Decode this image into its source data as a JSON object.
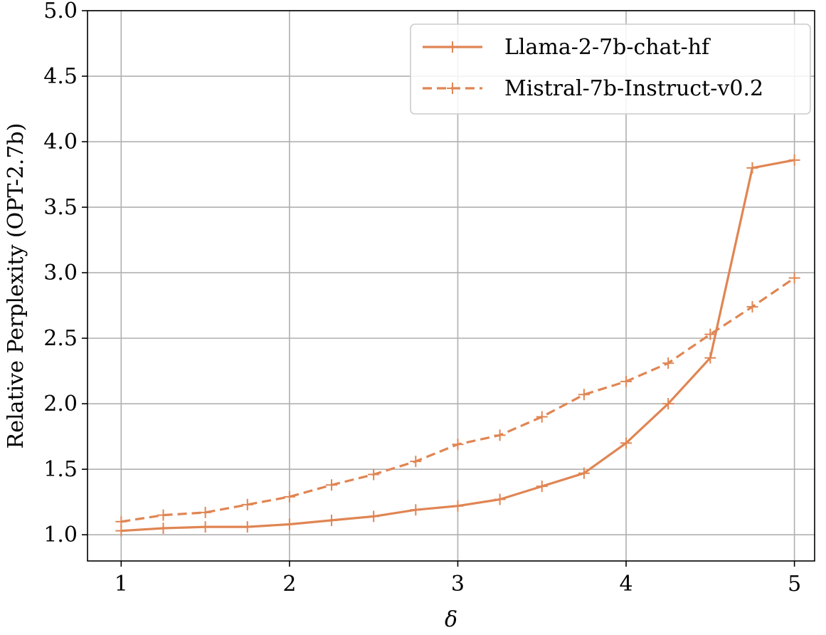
{
  "chart_data": {
    "type": "line",
    "xlabel": "δ",
    "ylabel": "Relative Perplexity (OPT-2.7b)",
    "xlim": [
      0.8,
      5.12
    ],
    "ylim": [
      0.8,
      5.0
    ],
    "xticks": [
      1,
      2,
      3,
      4,
      5
    ],
    "yticks": [
      1.0,
      1.5,
      2.0,
      2.5,
      3.0,
      3.5,
      4.0,
      4.5,
      5.0
    ],
    "xtick_labels": [
      "1",
      "2",
      "3",
      "4",
      "5"
    ],
    "ytick_labels": [
      "1.0",
      "1.5",
      "2.0",
      "2.5",
      "3.0",
      "3.5",
      "4.0",
      "4.5",
      "5.0"
    ],
    "grid": true,
    "legend_position": "top-right",
    "color": "#e08553",
    "series": [
      {
        "name": "Llama-2-7b-chat-hf",
        "style": "solid",
        "marker": "+",
        "x": [
          1.0,
          1.25,
          1.5,
          1.75,
          2.0,
          2.25,
          2.5,
          2.75,
          3.0,
          3.25,
          3.5,
          3.75,
          4.0,
          4.25,
          4.5,
          4.75,
          5.0
        ],
        "y": [
          1.03,
          1.05,
          1.06,
          1.06,
          1.08,
          1.11,
          1.14,
          1.19,
          1.22,
          1.27,
          1.37,
          1.47,
          1.7,
          2.0,
          2.35,
          3.8,
          3.86
        ]
      },
      {
        "name": "Mistral-7b-Instruct-v0.2",
        "style": "dashed",
        "marker": "+",
        "x": [
          1.0,
          1.25,
          1.5,
          1.75,
          2.0,
          2.25,
          2.5,
          2.75,
          3.0,
          3.25,
          3.5,
          3.75,
          4.0,
          4.25,
          4.5,
          4.75,
          5.0
        ],
        "y": [
          1.1,
          1.15,
          1.17,
          1.23,
          1.29,
          1.38,
          1.46,
          1.56,
          1.69,
          1.76,
          1.9,
          2.07,
          2.17,
          2.31,
          2.53,
          2.74,
          2.96
        ]
      }
    ]
  }
}
